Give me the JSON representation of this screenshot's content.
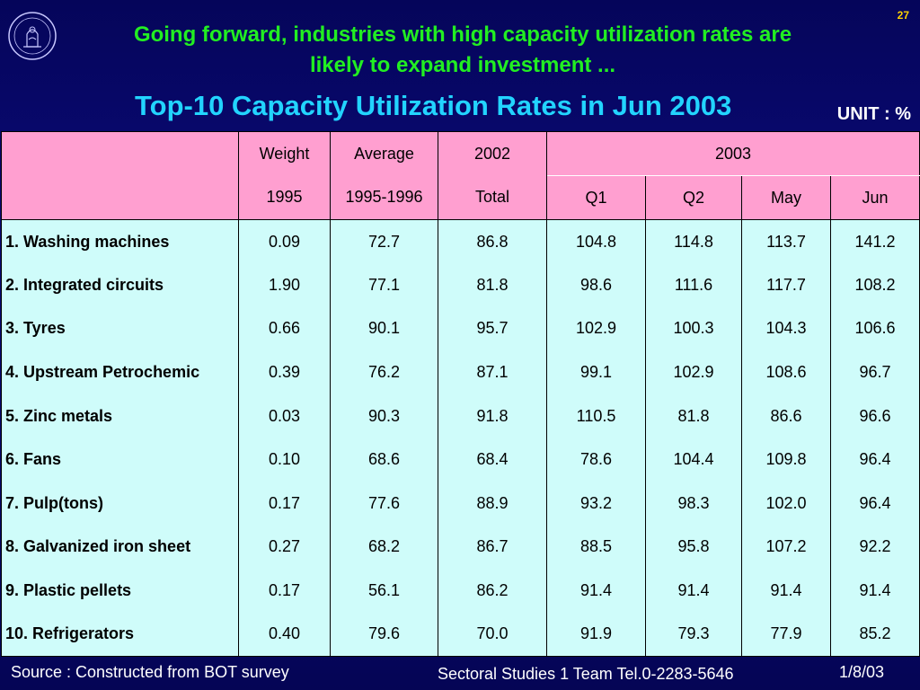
{
  "page_number": "27",
  "headline": {
    "line1": "Going forward, industries with high capacity utilization rates are",
    "line2": "likely to expand investment ..."
  },
  "subtitle": "Top-10 Capacity Utilization Rates in Jun 2003",
  "unit": "UNIT : %",
  "colors": {
    "headline": "#22ee22",
    "subtitle": "#22d4ff",
    "header_bg": "#ff9fd0",
    "body_bg": "#cffcfa",
    "page_number": "#ffd000"
  },
  "logo_icon": "bank-of-thailand-seal-icon",
  "table": {
    "header_row1": [
      "",
      "Weight",
      "Average",
      "2002",
      "2003"
    ],
    "header_row2": [
      "1995",
      "1995-1996",
      "Total",
      "Q1",
      "Q2",
      "May",
      "Jun"
    ],
    "rows": [
      {
        "name": "1. Washing machines",
        "values": [
          "0.09",
          "72.7",
          "86.8",
          "104.8",
          "114.8",
          "113.7",
          "141.2"
        ]
      },
      {
        "name": "2. Integrated circuits",
        "values": [
          "1.90",
          "77.1",
          "81.8",
          "98.6",
          "111.6",
          "117.7",
          "108.2"
        ]
      },
      {
        "name": "3. Tyres",
        "values": [
          "0.66",
          "90.1",
          "95.7",
          "102.9",
          "100.3",
          "104.3",
          "106.6"
        ]
      },
      {
        "name": "4. Upstream Petrochemic",
        "values": [
          "0.39",
          "76.2",
          "87.1",
          "99.1",
          "102.9",
          "108.6",
          "96.7"
        ]
      },
      {
        "name": "5.  Zinc metals",
        "values": [
          "0.03",
          "90.3",
          "91.8",
          "110.5",
          "81.8",
          "86.6",
          "96.6"
        ]
      },
      {
        "name": "6. Fans",
        "values": [
          "0.10",
          "68.6",
          "68.4",
          "78.6",
          "104.4",
          "109.8",
          "96.4"
        ]
      },
      {
        "name": "7. Pulp(tons)",
        "values": [
          "0.17",
          "77.6",
          "88.9",
          "93.2",
          "98.3",
          "102.0",
          "96.4"
        ]
      },
      {
        "name": "8. Galvanized iron sheet",
        "values": [
          "0.27",
          "68.2",
          "86.7",
          "88.5",
          "95.8",
          "107.2",
          "92.2"
        ]
      },
      {
        "name": "9. Plastic pellets",
        "values": [
          "0.17",
          "56.1",
          "86.2",
          "91.4",
          "91.4",
          "91.4",
          "91.4"
        ]
      },
      {
        "name": "10. Refrigerators",
        "values": [
          "0.40",
          "79.6",
          "70.0",
          "91.9",
          "79.3",
          "77.9",
          "85.2"
        ]
      }
    ]
  },
  "footer": {
    "source": "Source : Constructed from  BOT survey",
    "team": "Sectoral Studies 1 Team Tel.0-2283-5646",
    "date": "1/8/03"
  }
}
